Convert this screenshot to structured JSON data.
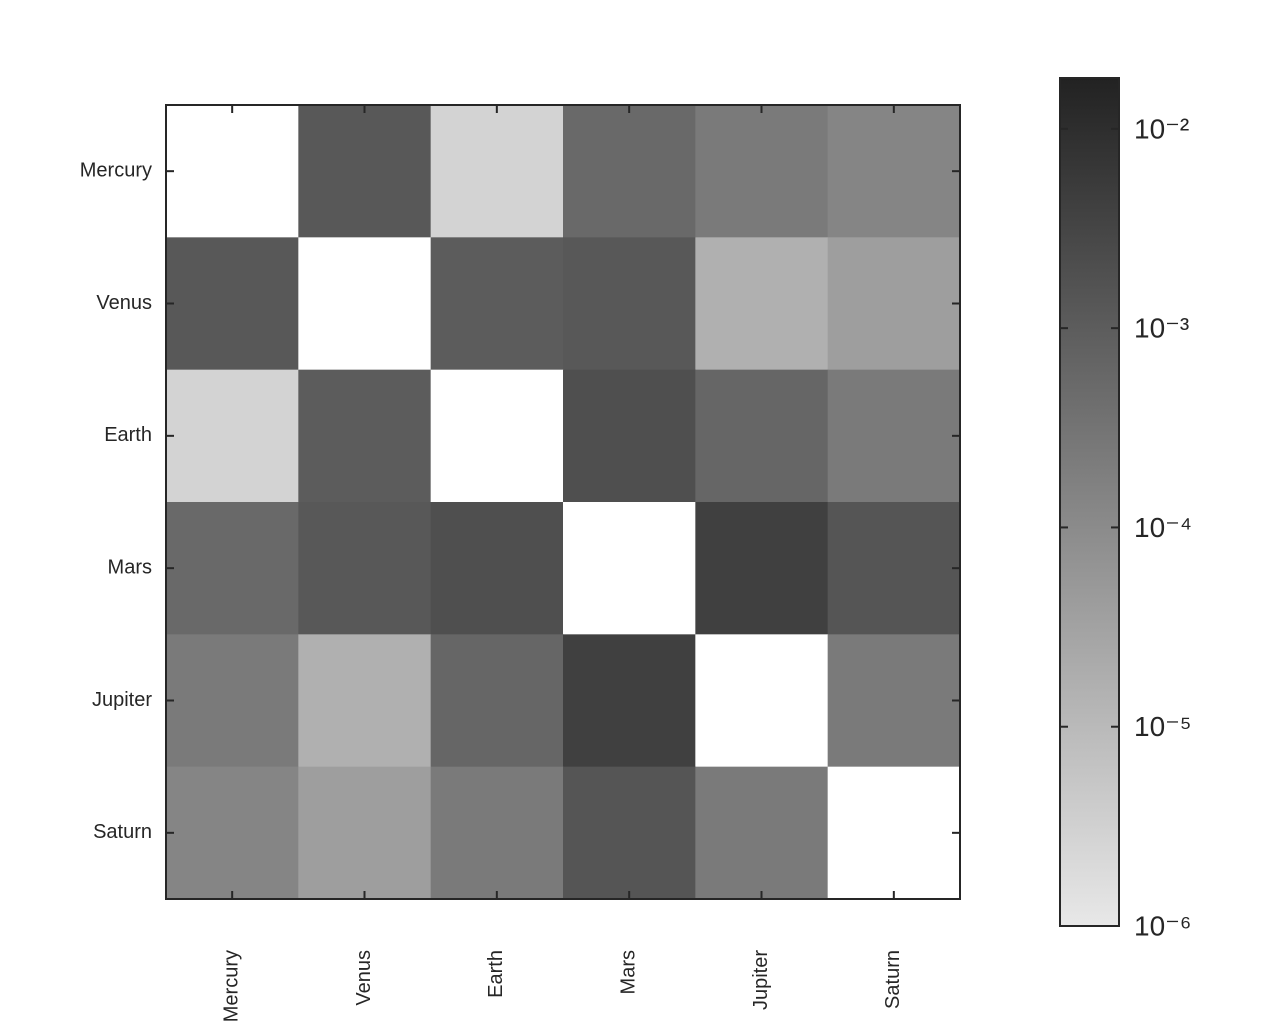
{
  "chart_data": {
    "type": "heatmap",
    "x_categories": [
      "Mercury",
      "Venus",
      "Earth",
      "Mars",
      "Jupiter",
      "Saturn"
    ],
    "y_categories": [
      "Mercury",
      "Venus",
      "Earth",
      "Mars",
      "Jupiter",
      "Saturn"
    ],
    "values": [
      [
        null,
        0.00126,
        2.8e-06,
        0.00054,
        0.00023,
        0.000135
      ],
      [
        0.00126,
        null,
        0.001,
        0.00126,
        1.6e-05,
        3.9e-05
      ],
      [
        2.8e-06,
        0.001,
        null,
        0.00195,
        0.00063,
        0.00023
      ],
      [
        0.00054,
        0.00126,
        0.00195,
        null,
        0.0041,
        0.00145
      ],
      [
        0.00023,
        1.6e-05,
        0.00063,
        0.0041,
        null,
        0.00023
      ],
      [
        0.000135,
        3.9e-05,
        0.00023,
        0.00145,
        0.00023,
        null
      ]
    ],
    "colorbar": {
      "scale": "log",
      "lim": [
        1e-06,
        0.018
      ],
      "ticks": [
        {
          "value": 0.01,
          "label": "10⁻²"
        },
        {
          "value": 0.001,
          "label": "10⁻³"
        },
        {
          "value": 0.0001,
          "label": "10⁻⁴"
        },
        {
          "value": 1e-05,
          "label": "10⁻⁵"
        },
        {
          "value": 1e-06,
          "label": "10⁻⁶"
        }
      ],
      "colormap": [
        "#e8e8e8",
        "#222222"
      ]
    },
    "nan_color": "#ffffff"
  }
}
